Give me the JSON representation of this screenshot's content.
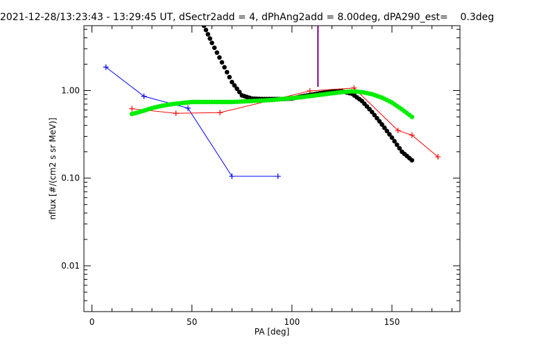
{
  "chart_data": {
    "type": "line",
    "title": "2021-12-28/13:23:43 - 13:29:45 UT, dSectr2add = 4, dPhAng2add = 8.00deg, dPA290_est=    0.3deg",
    "xlabel": "PA [deg]",
    "ylabel": "nflux [#/(cm2 s sr MeV)]",
    "xlim": [
      -4,
      184
    ],
    "ylim": [
      0.003,
      5.5
    ],
    "yscale": "log",
    "grid": false,
    "x_ticks": [
      0,
      50,
      100,
      150
    ],
    "y_ticks": [
      {
        "value": 0.01,
        "label": "0.01"
      },
      {
        "value": 0.1,
        "label": "0.10"
      },
      {
        "value": 1.0,
        "label": "1.00"
      }
    ],
    "series": [
      {
        "color": "#0000ff",
        "style": "line-plus",
        "x": [
          7,
          26,
          48,
          70,
          93
        ],
        "y": [
          1.85,
          0.86,
          0.63,
          0.105,
          0.105
        ]
      },
      {
        "color": "#ff0000",
        "style": "line-plus",
        "x": [
          20,
          42,
          64,
          109,
          131,
          153,
          160,
          173
        ],
        "y": [
          0.62,
          0.55,
          0.56,
          0.99,
          1.07,
          0.35,
          0.31,
          0.175
        ]
      },
      {
        "color": "#000000",
        "style": "dots",
        "x": [
          56,
          60,
          65,
          70,
          75,
          80,
          85,
          90,
          95,
          100,
          105,
          110,
          115,
          120,
          125,
          130,
          135,
          140,
          145,
          150,
          155,
          160
        ],
        "y": [
          5.5,
          3.5,
          2.1,
          1.25,
          0.88,
          0.81,
          0.8,
          0.8,
          0.8,
          0.81,
          0.86,
          0.9,
          0.94,
          0.97,
          0.98,
          0.92,
          0.76,
          0.57,
          0.41,
          0.29,
          0.2,
          0.16
        ]
      },
      {
        "color": "#00ee00",
        "style": "dots",
        "x": [
          20,
          25,
          30,
          35,
          40,
          45,
          50,
          55,
          60,
          65,
          70,
          75,
          80,
          85,
          90,
          95,
          100,
          105,
          110,
          115,
          120,
          125,
          130,
          135,
          140,
          145,
          150,
          155,
          160
        ],
        "y": [
          0.54,
          0.58,
          0.63,
          0.67,
          0.7,
          0.72,
          0.74,
          0.74,
          0.74,
          0.74,
          0.74,
          0.75,
          0.76,
          0.77,
          0.78,
          0.8,
          0.82,
          0.84,
          0.87,
          0.9,
          0.93,
          0.96,
          0.98,
          0.96,
          0.91,
          0.83,
          0.73,
          0.61,
          0.5
        ]
      }
    ],
    "marker_line": {
      "x": 113,
      "color": "#800080"
    }
  }
}
